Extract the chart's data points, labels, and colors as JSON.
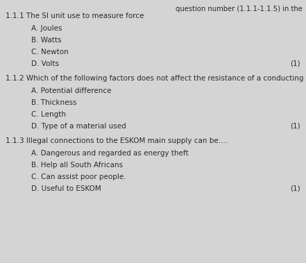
{
  "background_color": "#d4d4d4",
  "text_color": "#2a2a2a",
  "header_right": "question number (1.1.1-1.1.5) in the",
  "questions": [
    {
      "number": "1.1.1",
      "text": "The SI unit use to measure force",
      "options": [
        "A. Joules",
        "B. Watts",
        "C. Newton",
        "D. Volts"
      ],
      "mark": "(1)"
    },
    {
      "number": "1.1.2",
      "text": "Which of the following factors does not affect the resistance of a conducting wire",
      "options": [
        "A. Potential difference",
        "B. Thickness",
        "C. Length",
        "D. Type of a material used"
      ],
      "mark": "(1)"
    },
    {
      "number": "1.1.3",
      "text": "Illegal connections to the ESKOM main supply can be....",
      "options": [
        "A. Dangerous and regarded as energy theft",
        "B. Help all South Africans",
        "C. Can assist poor people.",
        "D. Useful to ESKOM"
      ],
      "mark": "(1)"
    }
  ],
  "font_size_question": 7.5,
  "font_size_option": 7.5,
  "font_size_header": 7.2,
  "font_size_mark": 7.5,
  "fig_width": 4.41,
  "fig_height": 3.79,
  "dpi": 100
}
